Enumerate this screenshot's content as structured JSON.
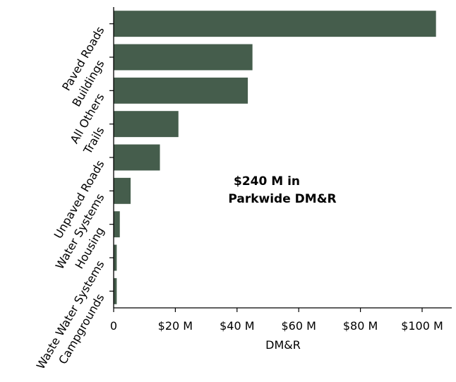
{
  "chart_data": {
    "type": "bar",
    "orientation": "horizontal",
    "categories": [
      "Paved Roads",
      "Buildings",
      "All Others",
      "Trails",
      "Unpaved Roads",
      "Water Systems",
      "Housing",
      "Waste Water Systems",
      "Campgrounds"
    ],
    "values": [
      104.5,
      45,
      43.5,
      21,
      15,
      5.5,
      2,
      1,
      1
    ],
    "value_unit": "$ M",
    "xlabel": "DM&R",
    "ylabel": "",
    "xlim": [
      0,
      110
    ],
    "xticks": [
      0,
      20,
      40,
      60,
      80,
      100
    ],
    "xtick_labels": [
      "0",
      "$20 M",
      "$40 M",
      "$60 M",
      "$80 M",
      "$100 M"
    ],
    "annotation": {
      "line1": "$240 M in",
      "line2": "Parkwide DM&R"
    },
    "bar_color": "#455d4c",
    "grid": false,
    "legend": "none"
  }
}
